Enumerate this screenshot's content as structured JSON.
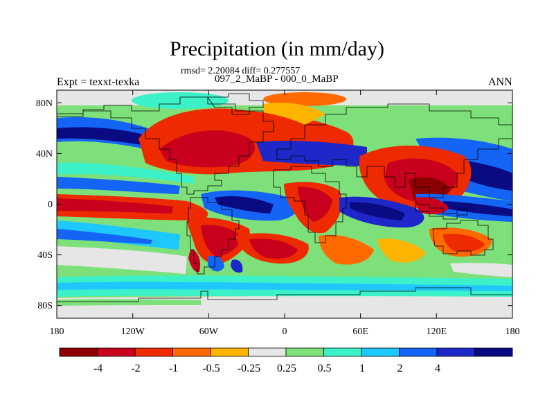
{
  "title": "Precipitation (in mm/day)",
  "stats_line": "rmsd= 2.20084 diff= 0.277557",
  "case_line": "097_2_MaBP - 000_0_MaBP",
  "expt_label": "Expt = texxt-texka",
  "season_label": "ANN",
  "map": {
    "lon_range": [
      -180,
      180
    ],
    "lat_range": [
      -90,
      90
    ],
    "x_ticks": [
      "180",
      "120W",
      "60W",
      "0",
      "60E",
      "120E",
      "180"
    ],
    "y_ticks": [
      "80N",
      "40N",
      "0",
      "40S",
      "80S"
    ]
  },
  "colorbar": {
    "colors": [
      "#8b0000",
      "#c8001e",
      "#ee2a00",
      "#ff6a00",
      "#ffb400",
      "#e6e6e6",
      "#7ee07a",
      "#3cf0c8",
      "#1ec8ff",
      "#1464f5",
      "#1e28c8",
      "#0a0a82"
    ],
    "labels": [
      "-4",
      "-2",
      "-1",
      "-0.5",
      "-0.25",
      "0.25",
      "0.5",
      "1",
      "2",
      "4"
    ]
  }
}
